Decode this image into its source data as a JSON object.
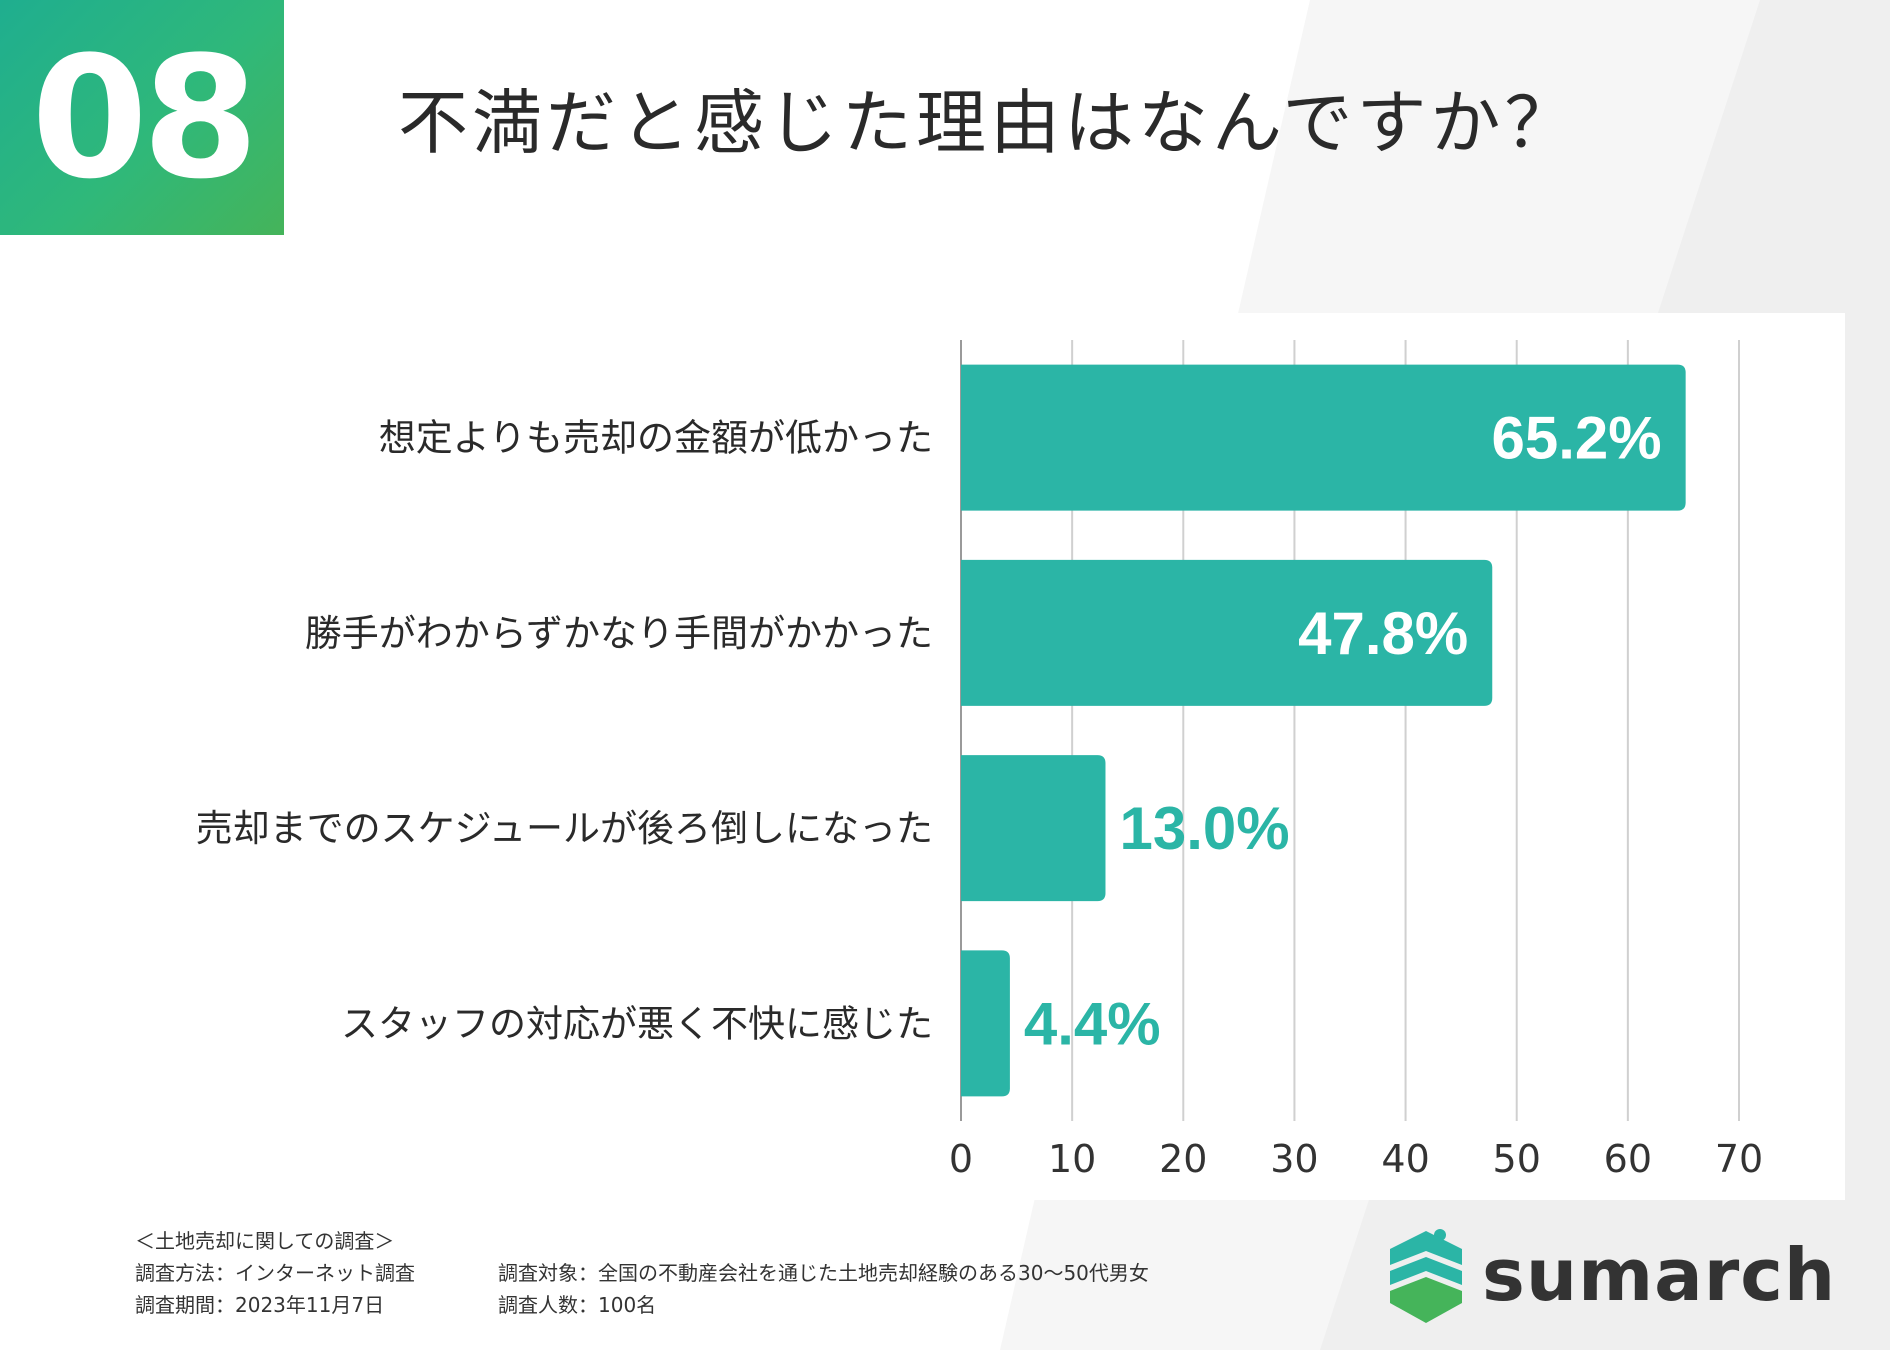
{
  "badge": {
    "number": "08"
  },
  "title": "不満だと感じた理由はなんですか？",
  "chart_data": {
    "type": "bar",
    "orientation": "horizontal",
    "categories": [
      "想定よりも売却の金額が低かった",
      "勝手がわからずかなり手間がかかった",
      "売却までのスケジュールが後ろ倒しになった",
      "スタッフの対応が悪く不快に感じた"
    ],
    "values": [
      65.2,
      47.8,
      13.0,
      4.4
    ],
    "value_labels": [
      "65.2%",
      "47.8%",
      "13.0%",
      "4.4%"
    ],
    "xlim": [
      0,
      70
    ],
    "xticks": [
      0,
      10,
      20,
      30,
      40,
      50,
      60,
      70
    ],
    "grid": true,
    "bar_color": "#2bb5a6"
  },
  "footer": {
    "survey_name": "＜土地売却に関しての調査＞",
    "method": "調査方法：インターネット調査",
    "period": "調査期間：2023年11月7日",
    "target": "調査対象：全国の不動産会社を通じた土地売却経験のある30〜50代男女",
    "count": "調査人数：100名"
  },
  "logo": {
    "text": "sumarch",
    "icon": "house-shield-icon"
  },
  "colors": {
    "accent": "#2bb5a6",
    "badge_start": "#1fae8f",
    "badge_end": "#45b45a"
  }
}
